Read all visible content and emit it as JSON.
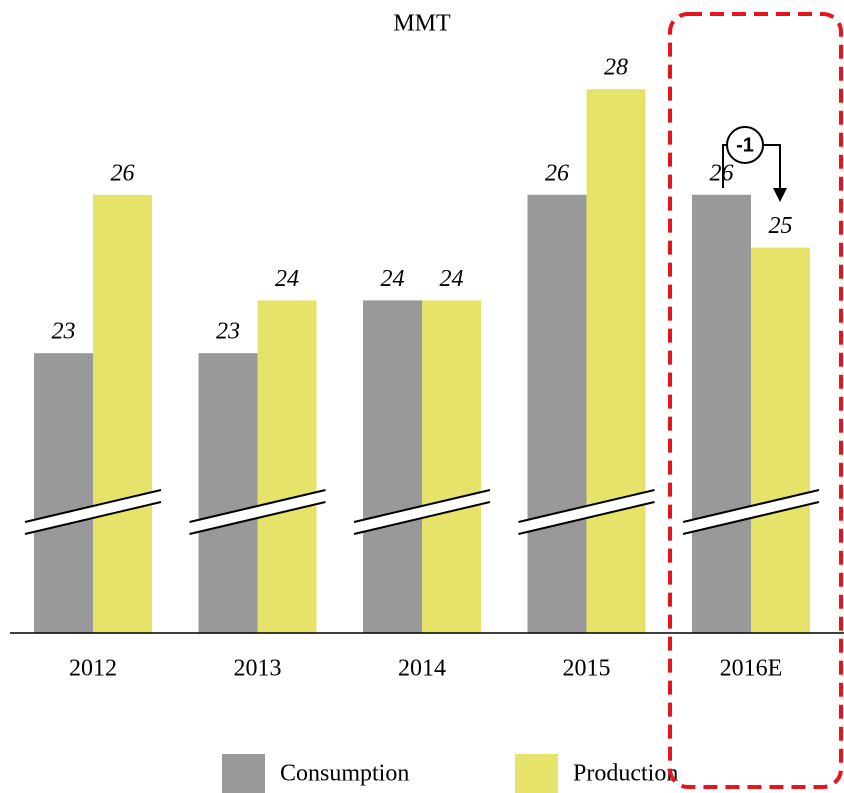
{
  "chart_data": {
    "type": "bar",
    "title": "MMT",
    "categories": [
      "2012",
      "2013",
      "2014",
      "2015",
      "2016E"
    ],
    "series": [
      {
        "name": "Consumption",
        "color": "#999999",
        "values": [
          23,
          23,
          24,
          26,
          26
        ]
      },
      {
        "name": "Production",
        "color": "#e6e36a",
        "values": [
          26,
          24,
          24,
          28,
          25
        ]
      }
    ],
    "ylim": [
      17.7,
      29.5
    ],
    "annotation": "-1"
  }
}
